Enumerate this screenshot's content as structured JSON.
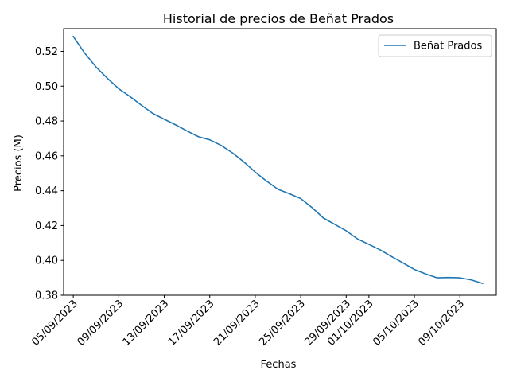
{
  "chart_data": {
    "type": "line",
    "title": "Historial de precios de Beñat Prados",
    "xlabel": "Fechas",
    "ylabel": "Precios (M)",
    "ylim": [
      0.38,
      0.533
    ],
    "yticks": [
      0.38,
      0.4,
      0.42,
      0.44,
      0.46,
      0.48,
      0.5,
      0.52
    ],
    "ytick_labels": [
      "0.38",
      "0.40",
      "0.42",
      "0.44",
      "0.46",
      "0.48",
      "0.50",
      "0.52"
    ],
    "xticks": [
      "2023-09-05",
      "2023-09-09",
      "2023-09-13",
      "2023-09-17",
      "2023-09-21",
      "2023-09-25",
      "2023-09-29",
      "2023-10-01",
      "2023-10-05",
      "2023-10-09"
    ],
    "xtick_labels": [
      "05/09/2023",
      "09/09/2023",
      "13/09/2023",
      "17/09/2023",
      "21/09/2023",
      "25/09/2023",
      "29/09/2023",
      "01/10/2023",
      "05/10/2023",
      "09/10/2023"
    ],
    "xlim": [
      "2023-09-04",
      "2023-10-12"
    ],
    "legend_position": "top-right",
    "grid": false,
    "series": [
      {
        "name": "Beñat Prados",
        "color": "#1f77b4",
        "points": [
          {
            "x": "2023-09-05",
            "y": 0.5285
          },
          {
            "x": "2023-09-06",
            "y": 0.519
          },
          {
            "x": "2023-09-07",
            "y": 0.511
          },
          {
            "x": "2023-09-08",
            "y": 0.5045
          },
          {
            "x": "2023-09-09",
            "y": 0.4985
          },
          {
            "x": "2023-09-10",
            "y": 0.494
          },
          {
            "x": "2023-09-11",
            "y": 0.489
          },
          {
            "x": "2023-09-12",
            "y": 0.4843
          },
          {
            "x": "2023-09-13",
            "y": 0.481
          },
          {
            "x": "2023-09-14",
            "y": 0.4778
          },
          {
            "x": "2023-09-15",
            "y": 0.4743
          },
          {
            "x": "2023-09-16",
            "y": 0.471
          },
          {
            "x": "2023-09-17",
            "y": 0.4692
          },
          {
            "x": "2023-09-18",
            "y": 0.466
          },
          {
            "x": "2023-09-19",
            "y": 0.4617
          },
          {
            "x": "2023-09-20",
            "y": 0.4565
          },
          {
            "x": "2023-09-21",
            "y": 0.4507
          },
          {
            "x": "2023-09-22",
            "y": 0.4455
          },
          {
            "x": "2023-09-23",
            "y": 0.4408
          },
          {
            "x": "2023-09-24",
            "y": 0.4383
          },
          {
            "x": "2023-09-25",
            "y": 0.4355
          },
          {
            "x": "2023-09-26",
            "y": 0.4303
          },
          {
            "x": "2023-09-27",
            "y": 0.4243
          },
          {
            "x": "2023-09-28",
            "y": 0.4207
          },
          {
            "x": "2023-09-29",
            "y": 0.417
          },
          {
            "x": "2023-09-30",
            "y": 0.4123
          },
          {
            "x": "2023-10-01",
            "y": 0.4092
          },
          {
            "x": "2023-10-02",
            "y": 0.406
          },
          {
            "x": "2023-10-03",
            "y": 0.4022
          },
          {
            "x": "2023-10-04",
            "y": 0.3985
          },
          {
            "x": "2023-10-05",
            "y": 0.3948
          },
          {
            "x": "2023-10-06",
            "y": 0.3922
          },
          {
            "x": "2023-10-07",
            "y": 0.39
          },
          {
            "x": "2023-10-08",
            "y": 0.3902
          },
          {
            "x": "2023-10-09",
            "y": 0.39
          },
          {
            "x": "2023-10-10",
            "y": 0.3888
          },
          {
            "x": "2023-10-11",
            "y": 0.3868
          }
        ]
      }
    ]
  }
}
